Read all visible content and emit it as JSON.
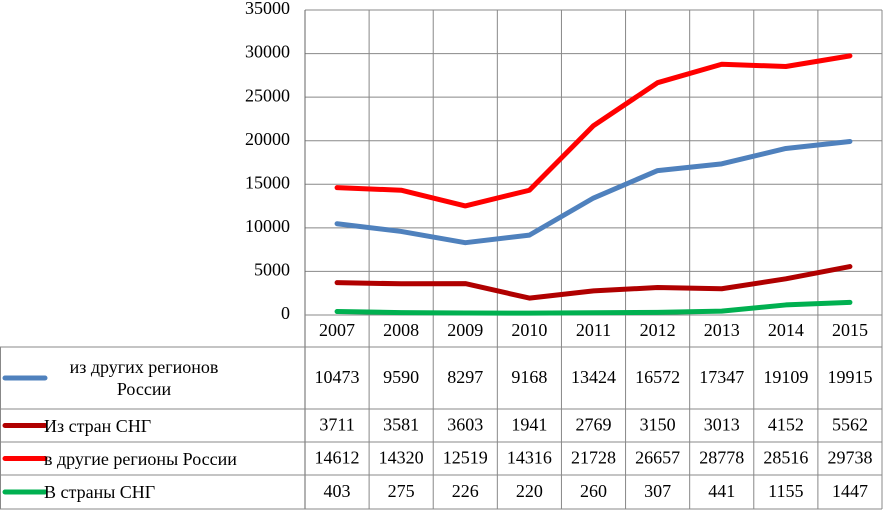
{
  "chart_data": {
    "type": "line",
    "categories": [
      "2007",
      "2008",
      "2009",
      "2010",
      "2011",
      "2012",
      "2013",
      "2014",
      "2015"
    ],
    "series": [
      {
        "name": "из других регионов России",
        "color": "#4f81bd",
        "values": [
          10473,
          9590,
          8297,
          9168,
          13424,
          16572,
          17347,
          19109,
          19915
        ]
      },
      {
        "name": "Из стран СНГ",
        "color": "#b00000",
        "values": [
          3711,
          3581,
          3603,
          1941,
          2769,
          3150,
          3013,
          4152,
          5562
        ]
      },
      {
        "name": "в другие регионы России",
        "color": "#ff0000",
        "values": [
          14612,
          14320,
          12519,
          14316,
          21728,
          26657,
          28778,
          28516,
          29738
        ]
      },
      {
        "name": "В страны СНГ",
        "color": "#00b050",
        "values": [
          403,
          275,
          226,
          220,
          260,
          307,
          441,
          1155,
          1447
        ]
      }
    ],
    "ylim": [
      0,
      35000
    ],
    "yticks": [
      0,
      5000,
      10000,
      15000,
      20000,
      25000,
      30000,
      35000
    ],
    "grid": true,
    "data_table": true
  }
}
